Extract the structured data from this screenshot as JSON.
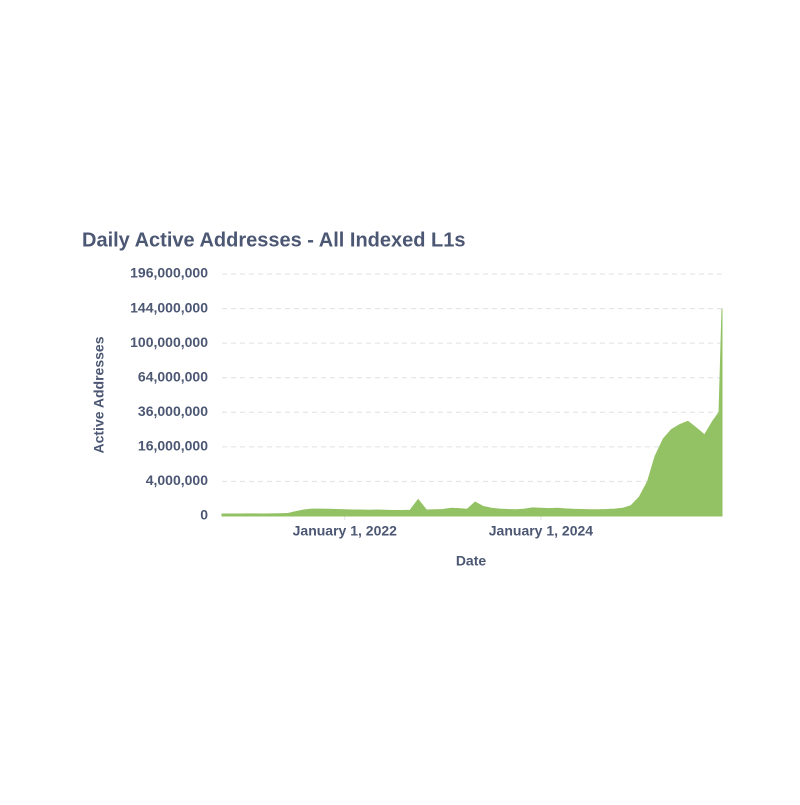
{
  "chart_data": {
    "type": "area",
    "title": "Daily Active Addresses - All Indexed L1s",
    "x_label": "Date",
    "y_label": "Active Addresses",
    "y_scale": "sqrt",
    "grid": true,
    "color": "#93c264",
    "xlim": [
      "2020-10-01",
      "2025-11-05"
    ],
    "xticks": [
      {
        "value": "2022-01-01",
        "label": "January 1, 2022"
      },
      {
        "value": "2024-01-01",
        "label": "January 1, 2024"
      }
    ],
    "ylim": [
      0,
      196000000
    ],
    "yticks": [
      0,
      {
        "value": 4000000,
        "label": "4,000,000"
      },
      {
        "value": 16000000,
        "label": "16,000,000"
      },
      {
        "value": 36000000,
        "label": "36,000,000"
      },
      {
        "value": 64000000,
        "label": "64,000,000"
      },
      {
        "value": 100000000,
        "label": "100,000,000"
      },
      {
        "value": 144000000,
        "label": "144,000,000"
      },
      {
        "value": 196000000,
        "label": "196,000,000"
      }
    ],
    "x": [
      "2020-10-01",
      "2020-11-01",
      "2020-12-01",
      "2021-01-01",
      "2021-02-01",
      "2021-03-01",
      "2021-04-01",
      "2021-05-01",
      "2021-06-01",
      "2021-07-01",
      "2021-08-01",
      "2021-09-01",
      "2021-10-01",
      "2021-11-01",
      "2021-12-01",
      "2022-01-01",
      "2022-02-01",
      "2022-03-01",
      "2022-04-01",
      "2022-05-01",
      "2022-06-01",
      "2022-07-01",
      "2022-08-01",
      "2022-09-01",
      "2022-10-01",
      "2022-11-01",
      "2022-12-01",
      "2023-01-01",
      "2023-02-01",
      "2023-03-01",
      "2023-04-01",
      "2023-05-01",
      "2023-06-01",
      "2023-07-01",
      "2023-08-01",
      "2023-09-01",
      "2023-10-01",
      "2023-11-01",
      "2023-12-01",
      "2024-01-01",
      "2024-02-01",
      "2024-03-01",
      "2024-04-01",
      "2024-05-01",
      "2024-06-01",
      "2024-07-01",
      "2024-08-01",
      "2024-09-01",
      "2024-10-01",
      "2024-11-01",
      "2024-12-01",
      "2025-01-01",
      "2025-02-01",
      "2025-03-01",
      "2025-04-01",
      "2025-05-01",
      "2025-06-01",
      "2025-07-01",
      "2025-08-01",
      "2025-09-01",
      "2025-10-01",
      "2025-10-25",
      "2025-11-05"
    ],
    "values": [
      13000,
      13000,
      14000,
      15000,
      15000,
      14000,
      15000,
      16000,
      20000,
      60000,
      120000,
      160000,
      160000,
      150000,
      140000,
      130000,
      120000,
      120000,
      110000,
      120000,
      110000,
      100000,
      100000,
      110000,
      900000,
      120000,
      130000,
      140000,
      200000,
      180000,
      150000,
      650000,
      300000,
      200000,
      160000,
      140000,
      130000,
      160000,
      220000,
      200000,
      180000,
      200000,
      170000,
      150000,
      140000,
      130000,
      130000,
      140000,
      160000,
      200000,
      350000,
      1200000,
      4000000,
      12000000,
      20000000,
      25000000,
      28000000,
      30000000,
      26000000,
      22000000,
      30000000,
      36000000,
      144000000
    ]
  }
}
